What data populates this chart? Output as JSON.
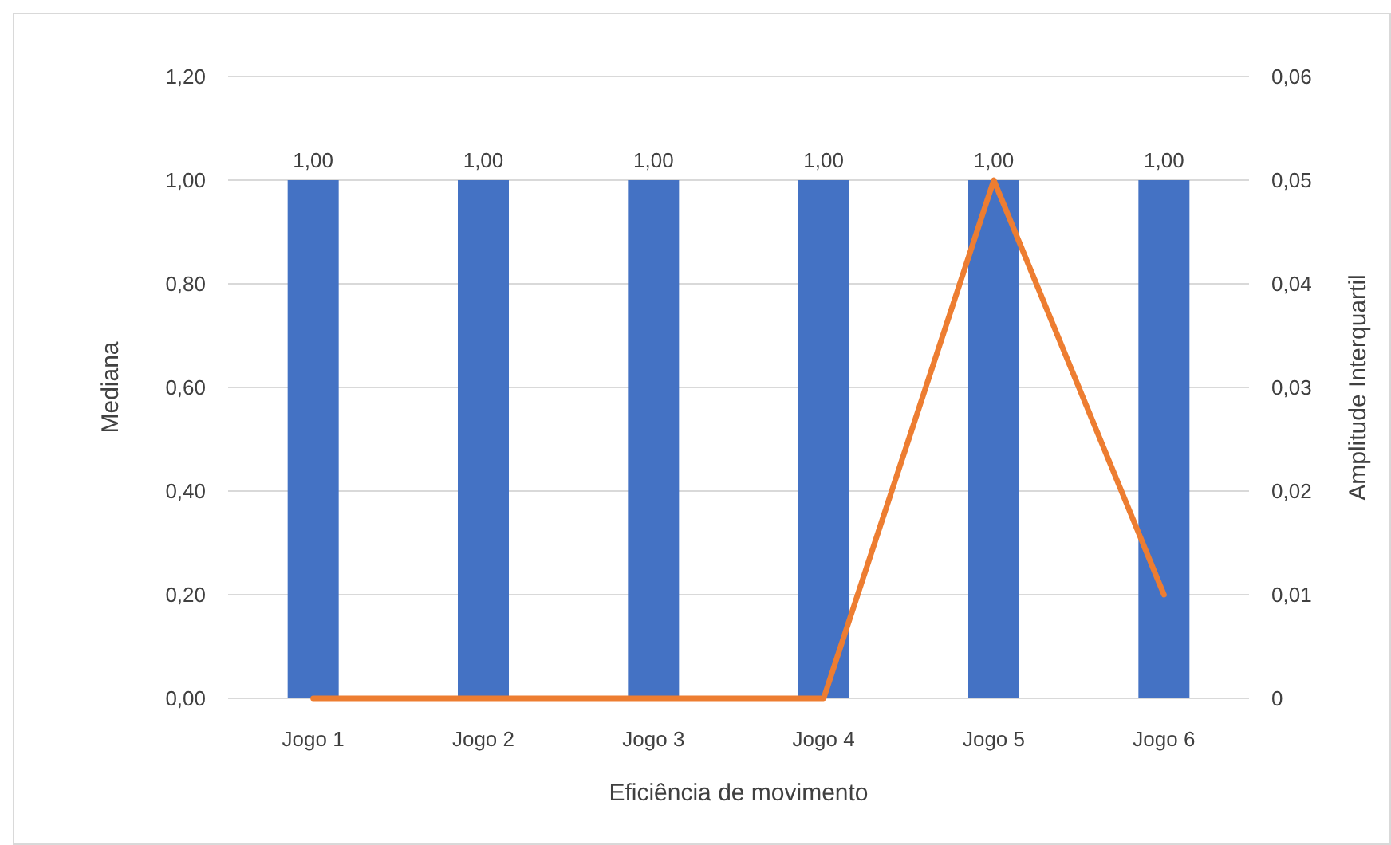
{
  "chart_data": {
    "type": "bar",
    "xlabel": "Eficiência de movimento",
    "ylabel": "Mediana",
    "y2label": "Amplitude Interquartil",
    "categories": [
      "Jogo 1",
      "Jogo 2",
      "Jogo 3",
      "Jogo 4",
      "Jogo 5",
      "Jogo 6"
    ],
    "series": [
      {
        "color": "#4472c4",
        "values": [
          1,
          1,
          1,
          1,
          1,
          1
        ],
        "value_labels": [
          "1,00",
          "1,00",
          "1,00",
          "1,00",
          "1,00",
          "1,00"
        ]
      },
      {
        "type": "line",
        "axis": "y2",
        "color": "#ed7d31",
        "values": [
          0,
          0,
          0,
          0,
          0.05,
          0.01
        ]
      }
    ],
    "ylim": [
      0,
      1.2
    ],
    "yticks": [
      {
        "value": 0,
        "label": "0,00"
      },
      {
        "value": 0.2,
        "label": "0,20"
      },
      {
        "value": 0.4,
        "label": "0,40"
      },
      {
        "value": 0.6,
        "label": "0,60"
      },
      {
        "value": 0.8,
        "label": "0,80"
      },
      {
        "value": 1,
        "label": "1,00"
      },
      {
        "value": 1.2,
        "label": "1,20"
      }
    ],
    "y2lim": [
      0,
      0.06
    ],
    "y2ticks": [
      0,
      {
        "value": 0.01,
        "label": "0,01"
      },
      {
        "value": 0.02,
        "label": "0,02"
      },
      {
        "value": 0.03,
        "label": "0,03"
      },
      {
        "value": 0.04,
        "label": "0,04"
      },
      {
        "value": 0.05,
        "label": "0,05"
      },
      {
        "value": 0.06,
        "label": "0,06"
      }
    ],
    "grid": "y",
    "marker": "none",
    "line_style": "solid"
  }
}
